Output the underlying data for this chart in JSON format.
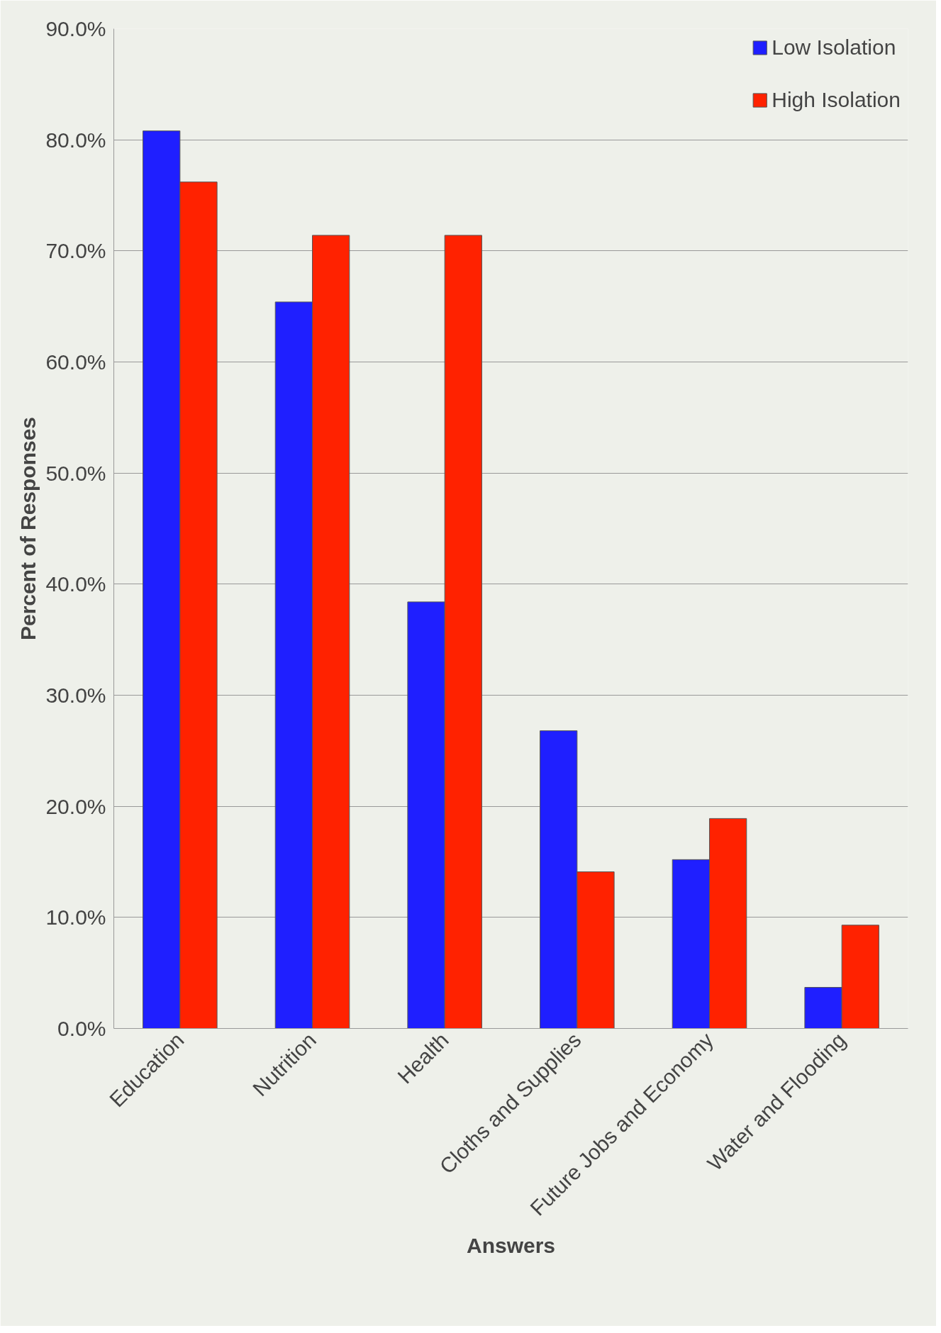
{
  "chart_data": {
    "type": "bar",
    "xlabel": "Answers",
    "ylabel": "Percent of Responses",
    "categories": [
      "Education",
      "Nutrition",
      "Health",
      "Cloths and Supplies",
      "Future Jobs and Economy",
      "Water and Flooding"
    ],
    "series": [
      {
        "name": "Low Isolation",
        "color": "#1f1fff",
        "values": [
          80.8,
          65.4,
          38.4,
          26.8,
          15.2,
          3.7
        ]
      },
      {
        "name": "High Isolation",
        "color": "#ff2200",
        "values": [
          76.2,
          71.4,
          71.4,
          14.1,
          18.9,
          9.3
        ]
      }
    ],
    "ylim": [
      0,
      90
    ],
    "yticks": [
      {
        "value": 0,
        "label": "0.0%"
      },
      {
        "value": 10,
        "label": "10.0%"
      },
      {
        "value": 20,
        "label": "20.0%"
      },
      {
        "value": 30,
        "label": "30.0%"
      },
      {
        "value": 40,
        "label": "40.0%"
      },
      {
        "value": 50,
        "label": "50.0%"
      },
      {
        "value": 60,
        "label": "60.0%"
      },
      {
        "value": 70,
        "label": "70.0%"
      },
      {
        "value": 80,
        "label": "80.0%"
      },
      {
        "value": 90,
        "label": "90.0%"
      }
    ],
    "grid": "y",
    "legend": "top right"
  }
}
